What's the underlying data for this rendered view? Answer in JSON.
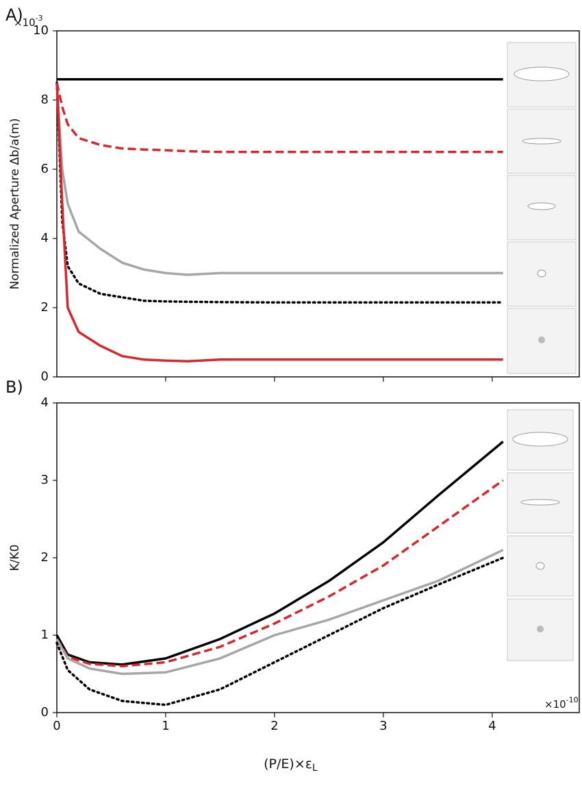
{
  "chart_data": [
    {
      "type": "line",
      "panel_label": "A)",
      "ylabel": "Normalized Aperture Δb/a(m)",
      "y_multiplier": {
        "base": "×10",
        "exp": "-3"
      },
      "xlim": [
        0,
        4.8
      ],
      "xticks": [
        1,
        2,
        3,
        4
      ],
      "show_xtick_labels": false,
      "ylim": [
        0,
        10
      ],
      "yticks": [
        0,
        2,
        4,
        6,
        8,
        10
      ],
      "x": [
        0,
        0.05,
        0.1,
        0.2,
        0.4,
        0.6,
        0.8,
        1.0,
        1.2,
        1.5,
        2,
        3,
        4.1
      ],
      "series": [
        {
          "color": "#000000",
          "dash": "solid",
          "values": [
            8.6,
            8.6,
            8.6,
            8.6,
            8.6,
            8.6,
            8.6,
            8.6,
            8.6,
            8.6,
            8.6,
            8.6,
            8.6
          ]
        },
        {
          "color": "#d9262b",
          "dash": "dashed",
          "values": [
            8.5,
            7.8,
            7.3,
            6.9,
            6.7,
            6.6,
            6.57,
            6.55,
            6.52,
            6.5,
            6.5,
            6.5,
            6.5
          ]
        },
        {
          "color": "#a6a6a6",
          "dash": "solid",
          "values": [
            8.5,
            6.0,
            5.0,
            4.2,
            3.7,
            3.3,
            3.1,
            3.0,
            2.95,
            3.0,
            3.0,
            3.0,
            3.0
          ]
        },
        {
          "color": "#000000",
          "dash": "dotted",
          "values": [
            8.5,
            4.5,
            3.2,
            2.7,
            2.4,
            2.3,
            2.2,
            2.18,
            2.17,
            2.16,
            2.15,
            2.15,
            2.15
          ]
        },
        {
          "color": "#d9262b",
          "dash": "solid",
          "values": [
            8.5,
            5.0,
            2.0,
            1.3,
            0.9,
            0.6,
            0.5,
            0.47,
            0.45,
            0.5,
            0.5,
            0.5,
            0.5
          ]
        }
      ]
    },
    {
      "type": "line",
      "panel_label": "B)",
      "ylabel": "K/K0",
      "x_multiplier": {
        "base": "×10",
        "exp": "-10"
      },
      "xlabel": {
        "text": "(P/E)×ε",
        "sub": "L"
      },
      "xlim": [
        0,
        4.8
      ],
      "xticks": [
        0,
        1,
        2,
        3,
        4
      ],
      "show_xtick_labels": true,
      "ylim": [
        0,
        4
      ],
      "yticks": [
        0,
        1,
        2,
        3,
        4
      ],
      "x": [
        0,
        0.1,
        0.3,
        0.6,
        1,
        1.5,
        2,
        2.5,
        3,
        3.5,
        4.1
      ],
      "series": [
        {
          "color": "#000000",
          "dash": "solid",
          "values": [
            1.0,
            0.75,
            0.65,
            0.62,
            0.7,
            0.95,
            1.28,
            1.7,
            2.2,
            2.8,
            3.5
          ]
        },
        {
          "color": "#d9262b",
          "dash": "dashed",
          "values": [
            0.95,
            0.72,
            0.63,
            0.6,
            0.65,
            0.85,
            1.15,
            1.5,
            1.9,
            2.4,
            3.0
          ]
        },
        {
          "color": "#a6a6a6",
          "dash": "solid",
          "values": [
            0.95,
            0.7,
            0.57,
            0.5,
            0.52,
            0.7,
            1.0,
            1.2,
            1.45,
            1.7,
            2.1
          ]
        },
        {
          "color": "#000000",
          "dash": "dotted",
          "values": [
            0.9,
            0.55,
            0.3,
            0.15,
            0.1,
            0.3,
            0.65,
            1.0,
            1.35,
            1.65,
            2.0
          ]
        }
      ]
    }
  ]
}
